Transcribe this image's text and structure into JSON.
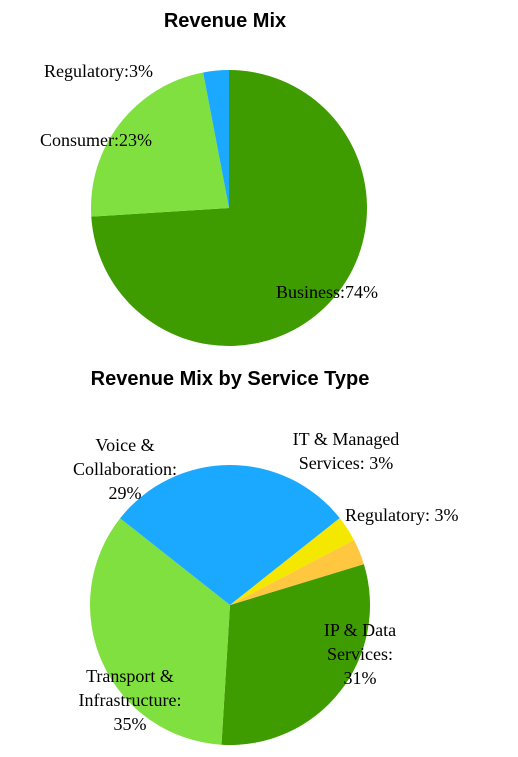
{
  "chart_data": [
    {
      "type": "pie",
      "title": "Revenue Mix",
      "slices": [
        {
          "label": "Business",
          "value": 74,
          "color": "#3f9c00",
          "text": [
            "Business:74%"
          ]
        },
        {
          "label": "Consumer",
          "value": 23,
          "color": "#80e040",
          "text": [
            "Consumer:23%"
          ]
        },
        {
          "label": "Regulatory",
          "value": 3,
          "color": "#1aa9ff",
          "text": [
            "Regulatory:3%"
          ]
        }
      ]
    },
    {
      "type": "pie",
      "title": "Revenue Mix by Service Type",
      "slices": [
        {
          "label": "IP & Data Services",
          "value": 31,
          "color": "#3f9c00",
          "text": [
            "IP & Data",
            "Services:",
            "31%"
          ]
        },
        {
          "label": "Transport & Infrastructure",
          "value": 35,
          "color": "#80e040",
          "text": [
            "Transport &",
            "Infrastructure:",
            "35%"
          ]
        },
        {
          "label": "Voice & Collaboration",
          "value": 29,
          "color": "#1aa9ff",
          "text": [
            "Voice &",
            "Collaboration:",
            "29%"
          ]
        },
        {
          "label": "IT & Managed Services",
          "value": 3,
          "color": "#f5e800",
          "text": [
            "IT & Managed",
            "Services: 3%"
          ]
        },
        {
          "label": "Regulatory",
          "value": 3,
          "color": "#ffc640",
          "text": [
            "Regulatory: 3%"
          ]
        }
      ]
    }
  ]
}
